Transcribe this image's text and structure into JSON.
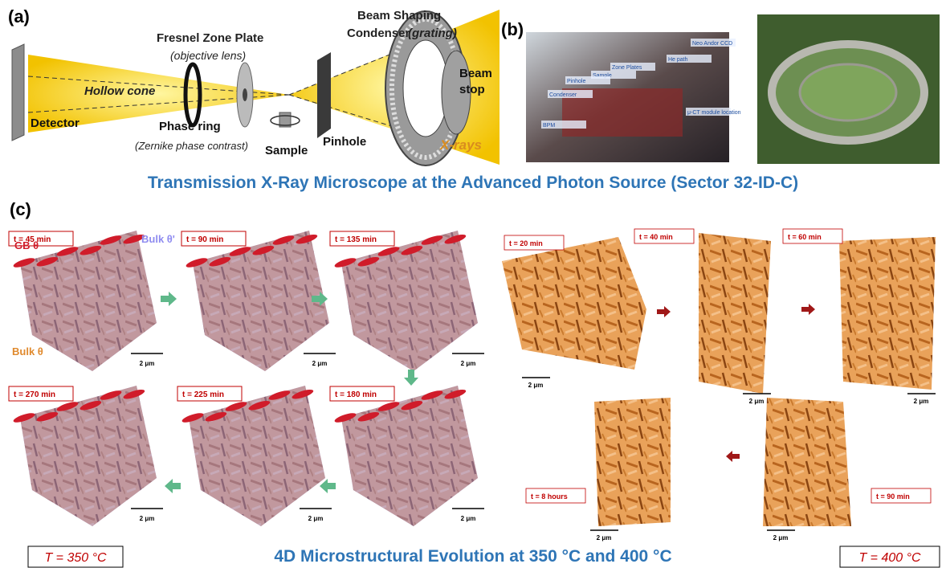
{
  "panel_a": {
    "label": "(a)",
    "texts": [
      "Beam Shaping",
      "Condenser",
      "(grating)",
      "Fresnel Zone Plate",
      "(objective lens)",
      "Hollow cone",
      "Detector",
      "Phase ring",
      "(Zernike phase contrast)",
      "Sample",
      "Pinhole",
      "Beam",
      "stop",
      "X-rays"
    ]
  },
  "panel_b": {
    "label": "(b)",
    "photo_labels": [
      "Neo Andor CCD",
      "He path",
      "Zone Plates",
      "Sample",
      "Pinhole",
      "Condenser",
      "BPM",
      "μ-CT module location"
    ]
  },
  "caption_top": "Transmission X-Ray Microscope at the Advanced Photon Source (Sector 32-ID-C)",
  "panel_c": {
    "label": "(c)",
    "annotations": [
      "GB θ",
      "Bulk θ'",
      "Bulk θ"
    ],
    "tiles_350": [
      {
        "time": "t = 45 min",
        "scale": "2 μm"
      },
      {
        "time": "t = 90 min",
        "scale": "2 μm"
      },
      {
        "time": "t = 135 min",
        "scale": "2 μm"
      },
      {
        "time": "t = 270 min",
        "scale": "2 μm"
      },
      {
        "time": "t = 225 min",
        "scale": "2 μm"
      },
      {
        "time": "t = 180 min",
        "scale": "2 μm"
      }
    ],
    "tiles_400": [
      {
        "time": "t = 20 min",
        "scale": "2 μm"
      },
      {
        "time": "t = 40 min",
        "scale": "2 μm"
      },
      {
        "time": "t = 60 min",
        "scale": "2 μm"
      },
      {
        "time": "t = 8 hours",
        "scale": "2 μm"
      },
      {
        "time": "t = 90 min",
        "scale": "2 μm"
      }
    ],
    "temp_left": "T = 350 °C",
    "caption": "4D Microstructural Evolution at 350 °C and 400 °C",
    "temp_right": "T = 400 °C"
  }
}
